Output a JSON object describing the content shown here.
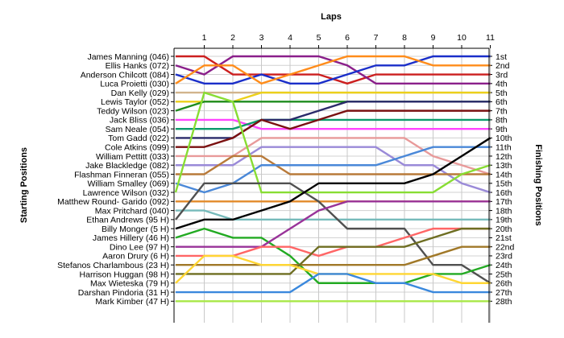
{
  "chart_data": {
    "type": "line",
    "title": "",
    "xlabel": "Laps",
    "ylabel_left": "Starting Positions",
    "ylabel_right": "Finishing Positions",
    "x": [
      0,
      1,
      2,
      3,
      4,
      5,
      6,
      7,
      8,
      9,
      10,
      11
    ],
    "x_tick_labels": [
      "1",
      "2",
      "3",
      "4",
      "5",
      "6",
      "7",
      "8",
      "9",
      "10",
      "11"
    ],
    "y_range": [
      1,
      28
    ],
    "y_inverted": true,
    "grid": true,
    "finishing_labels": [
      "1st",
      "2nd",
      "3rd",
      "4th",
      "5th",
      "6th",
      "7th",
      "8th",
      "9th",
      "10th",
      "11th",
      "12th",
      "13th",
      "14th",
      "15th",
      "16th",
      "17th",
      "18th",
      "19th",
      "20th",
      "21st",
      "22nd",
      "23rd",
      "24th",
      "25th",
      "26th",
      "27th",
      "28th"
    ],
    "series": [
      {
        "name": "James Manning (046)",
        "color": "#cc1f1f",
        "values": [
          1,
          1,
          3,
          3,
          3,
          3,
          4,
          3,
          3,
          3,
          3,
          3
        ]
      },
      {
        "name": "Ellis Hanks (072)",
        "color": "#8a1f8a",
        "values": [
          2,
          3,
          1,
          1,
          1,
          1,
          2,
          4,
          4,
          4,
          4,
          4
        ]
      },
      {
        "name": "Anderson Chilcott (084)",
        "color": "#1a2ec9",
        "values": [
          3,
          4,
          4,
          3,
          4,
          4,
          3,
          2,
          2,
          1,
          1,
          1
        ]
      },
      {
        "name": "Luca Proietti (030)",
        "color": "#ff8c1a",
        "values": [
          4,
          2,
          2,
          4,
          3,
          2,
          1,
          1,
          1,
          2,
          2,
          2
        ]
      },
      {
        "name": "Dan Kelly (029)",
        "color": "#d2b48c",
        "values": [
          5,
          5,
          5,
          5,
          5,
          5,
          5,
          5,
          5,
          5,
          5,
          5
        ]
      },
      {
        "name": "Lewis Taylor (052)",
        "color": "#ecd01a",
        "values": [
          6,
          6,
          6,
          5,
          5,
          5,
          5,
          5,
          5,
          5,
          5,
          5
        ]
      },
      {
        "name": "Teddy Wilson (023)",
        "color": "#1e8c1e",
        "values": [
          7,
          6,
          6,
          6,
          6,
          6,
          6,
          6,
          6,
          6,
          6,
          6
        ]
      },
      {
        "name": "Jack Bliss (036)",
        "color": "#ff44ff",
        "values": [
          8,
          8,
          8,
          9,
          9,
          9,
          9,
          9,
          9,
          9,
          9,
          9
        ]
      },
      {
        "name": "Sam Neale (054)",
        "color": "#0b9b6b",
        "values": [
          9,
          9,
          9,
          8,
          8,
          8,
          8,
          8,
          8,
          8,
          8,
          8
        ]
      },
      {
        "name": "Tom Gadd (022)",
        "color": "#2a2a6a",
        "values": [
          10,
          10,
          10,
          8,
          8,
          7,
          6,
          6,
          6,
          6,
          6,
          6
        ]
      },
      {
        "name": "Cole Atkins (099)",
        "color": "#7a1010",
        "values": [
          11,
          11,
          10,
          8,
          9,
          8,
          7,
          7,
          7,
          7,
          7,
          7
        ]
      },
      {
        "name": "William Pettitt (033)",
        "color": "#e89a9a",
        "values": [
          12,
          12,
          12,
          10,
          10,
          10,
          10,
          10,
          10,
          12,
          13,
          14
        ]
      },
      {
        "name": "Jake Blackledge (082)",
        "color": "#9a8ad8",
        "values": [
          13,
          13,
          13,
          11,
          11,
          11,
          11,
          11,
          13,
          13,
          15,
          16
        ]
      },
      {
        "name": "Flashman Finneran (055)",
        "color": "#b87a3a",
        "values": [
          14,
          14,
          12,
          12,
          14,
          14,
          14,
          14,
          14,
          14,
          14,
          14
        ]
      },
      {
        "name": "William Smalley (069)",
        "color": "#4a88d8",
        "values": [
          15,
          16,
          15,
          13,
          13,
          13,
          13,
          13,
          12,
          11,
          11,
          11
        ]
      },
      {
        "name": "Lawrence Wilson (032)",
        "color": "#88dd33",
        "values": [
          16,
          5,
          6,
          16,
          16,
          16,
          16,
          16,
          16,
          16,
          14,
          13
        ]
      },
      {
        "name": "Matthew Round- Garido (092)",
        "color": "#e38a2a",
        "values": [
          17,
          17,
          17,
          17,
          17,
          17,
          17,
          17,
          17,
          17,
          17,
          17
        ]
      },
      {
        "name": "Max Pritchard (040)",
        "color": "#77bbbb",
        "values": [
          18,
          18,
          19,
          19,
          19,
          19,
          19,
          19,
          19,
          19,
          19,
          19
        ]
      },
      {
        "name": "Ethan Andrews (95 H)",
        "color": "#505050",
        "values": [
          19,
          15,
          15,
          15,
          15,
          17,
          20,
          20,
          20,
          24,
          24,
          26
        ]
      },
      {
        "name": "Billy Monger (5 H)",
        "color": "#000000",
        "values": [
          20,
          19,
          19,
          18,
          17,
          15,
          15,
          15,
          15,
          14,
          12,
          10
        ]
      },
      {
        "name": "James Hillery (46 H)",
        "color": "#22aa22",
        "values": [
          21,
          20,
          21,
          21,
          23,
          26,
          26,
          26,
          26,
          25,
          25,
          24
        ]
      },
      {
        "name": "Dino Lee (97 H)",
        "color": "#993399",
        "values": [
          22,
          22,
          22,
          22,
          20,
          18,
          17,
          17,
          17,
          17,
          17,
          17
        ]
      },
      {
        "name": "Aaron Drury (6 H)",
        "color": "#ff6666",
        "values": [
          23,
          23,
          23,
          22,
          22,
          23,
          22,
          22,
          21,
          20,
          20,
          20
        ]
      },
      {
        "name": "Stefanos Charlambous (23 H)",
        "color": "#a07828",
        "values": [
          24,
          24,
          24,
          24,
          24,
          24,
          24,
          24,
          24,
          23,
          22,
          22
        ]
      },
      {
        "name": "Harrison Huggan (98 H)",
        "color": "#6e6e22",
        "values": [
          25,
          25,
          25,
          25,
          25,
          22,
          22,
          22,
          22,
          21,
          20,
          20
        ]
      },
      {
        "name": "Max Wieteska (79 H)",
        "color": "#ffd633",
        "values": [
          26,
          23,
          23,
          24,
          24,
          25,
          25,
          25,
          25,
          25,
          26,
          26
        ]
      },
      {
        "name": "Darshan Pindoria (31 H)",
        "color": "#3a88dd",
        "values": [
          27,
          27,
          27,
          27,
          27,
          25,
          25,
          26,
          26,
          27,
          27,
          27
        ]
      },
      {
        "name": "Mark Kimber (47 H)",
        "color": "#a8e848",
        "values": [
          28,
          28,
          28,
          28,
          28,
          28,
          28,
          28,
          28,
          28,
          28,
          28
        ]
      }
    ]
  }
}
